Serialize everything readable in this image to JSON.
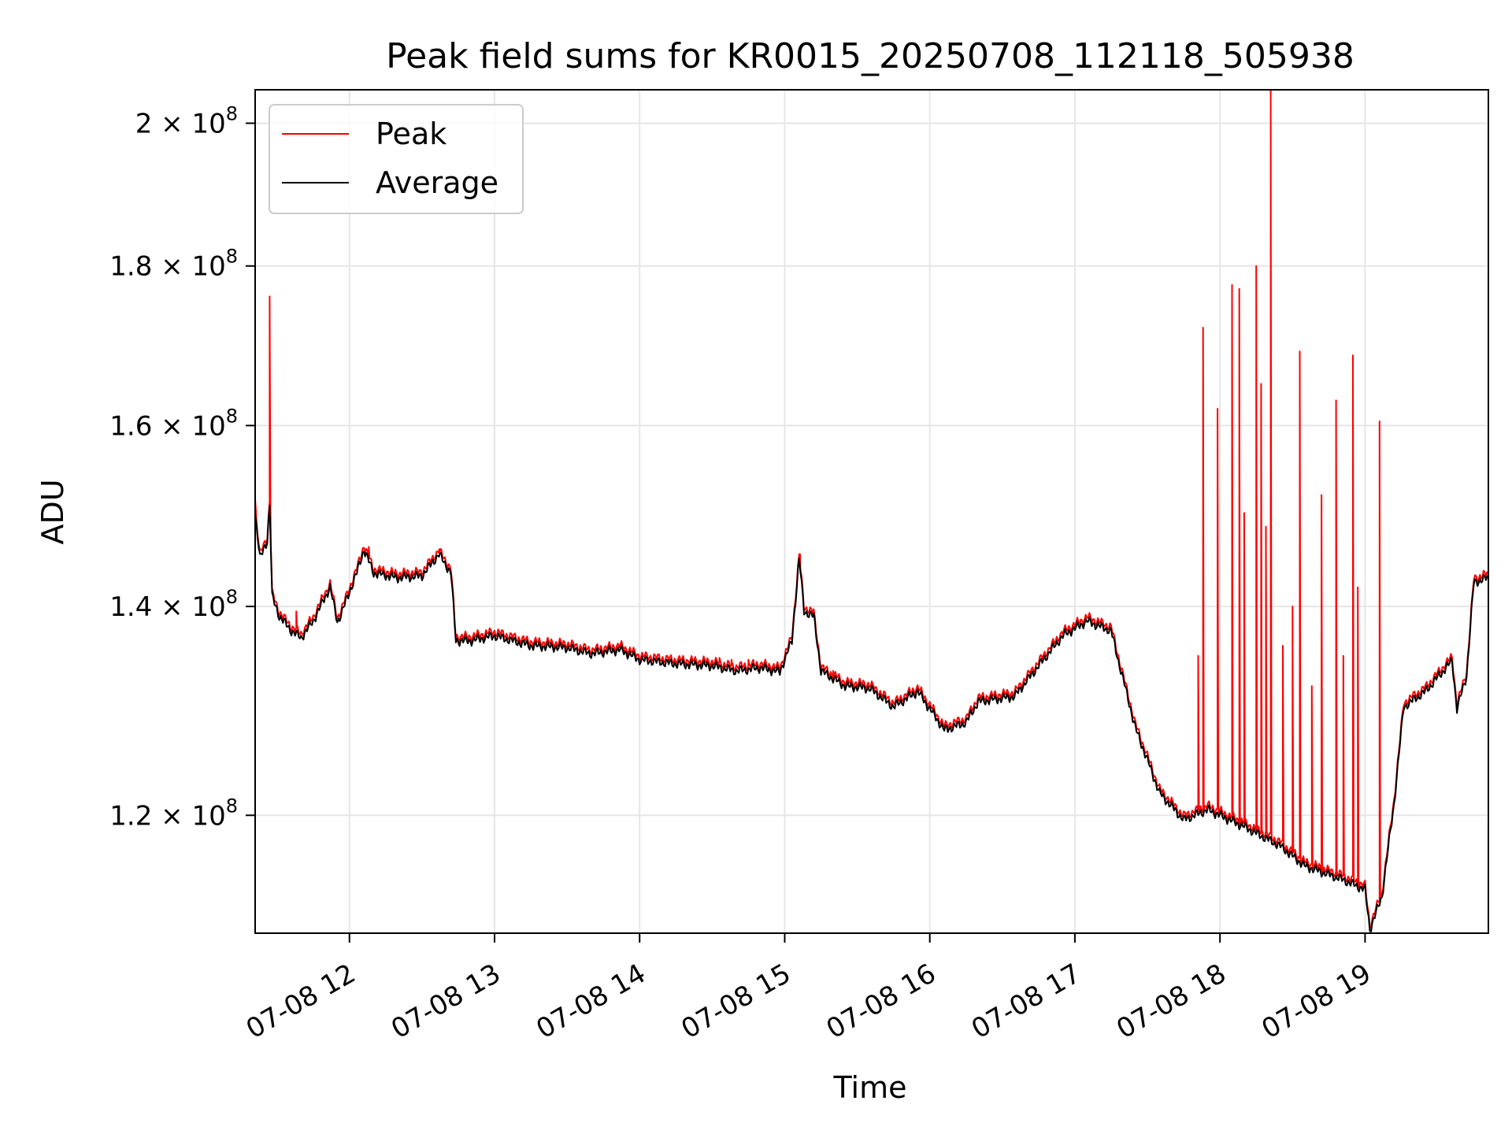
{
  "chart_data": {
    "type": "line",
    "title": "Peak field sums for KR0015_20250708_112118_505938",
    "xlabel": "Time",
    "ylabel": "ADU",
    "y_scale": "log",
    "ylim": [
      110000000,
      205000000
    ],
    "xlim": [
      "07-08 11:21",
      "07-08 19:51"
    ],
    "grid": true,
    "legend_position": "upper left",
    "x_ticks": [
      "07-08 12",
      "07-08 13",
      "07-08 14",
      "07-08 15",
      "07-08 16",
      "07-08 17",
      "07-08 18",
      "07-08 19"
    ],
    "y_ticks": [
      {
        "value": 120000000,
        "mantissa": "1.2",
        "exponent": "8"
      },
      {
        "value": 140000000,
        "mantissa": "1.4",
        "exponent": "8"
      },
      {
        "value": 160000000,
        "mantissa": "1.6",
        "exponent": "8"
      },
      {
        "value": 180000000,
        "mantissa": "1.8",
        "exponent": "8"
      },
      {
        "value": 200000000,
        "mantissa": "2",
        "exponent": "8"
      }
    ],
    "series": [
      {
        "name": "Average",
        "color": "#000000",
        "points": [
          [
            "07-08 11:21",
            150000000
          ],
          [
            "07-08 11:23",
            145000000
          ],
          [
            "07-08 11:26",
            147000000
          ],
          [
            "07-08 11:27",
            151000000
          ],
          [
            "07-08 11:28",
            141000000
          ],
          [
            "07-08 11:31",
            139000000
          ],
          [
            "07-08 11:36",
            137500000
          ],
          [
            "07-08 11:40",
            136800000
          ],
          [
            "07-08 11:45",
            138500000
          ],
          [
            "07-08 11:52",
            142000000
          ],
          [
            "07-08 11:55",
            138400000
          ],
          [
            "07-08 11:57",
            139500000
          ],
          [
            "07-08 12:03",
            143500000
          ],
          [
            "07-08 12:06",
            146000000
          ],
          [
            "07-08 12:10",
            143500000
          ],
          [
            "07-08 12:20",
            143000000
          ],
          [
            "07-08 12:30",
            143200000
          ],
          [
            "07-08 12:37",
            145500000
          ],
          [
            "07-08 12:42",
            143500000
          ],
          [
            "07-08 12:44",
            136500000
          ],
          [
            "07-08 12:50",
            136500000
          ],
          [
            "07-08 13:00",
            137000000
          ],
          [
            "07-08 13:15",
            136000000
          ],
          [
            "07-08 13:30",
            135800000
          ],
          [
            "07-08 13:40",
            135200000
          ],
          [
            "07-08 13:52",
            135600000
          ],
          [
            "07-08 14:00",
            134600000
          ],
          [
            "07-08 14:15",
            134200000
          ],
          [
            "07-08 14:30",
            134000000
          ],
          [
            "07-08 14:40",
            133500000
          ],
          [
            "07-08 14:50",
            133800000
          ],
          [
            "07-08 14:58",
            133400000
          ],
          [
            "07-08 15:03",
            136500000
          ],
          [
            "07-08 15:06",
            145000000
          ],
          [
            "07-08 15:08",
            139500000
          ],
          [
            "07-08 15:12",
            139000000
          ],
          [
            "07-08 15:15",
            133500000
          ],
          [
            "07-08 15:25",
            132000000
          ],
          [
            "07-08 15:35",
            131800000
          ],
          [
            "07-08 15:45",
            130000000
          ],
          [
            "07-08 15:55",
            131500000
          ],
          [
            "07-08 16:06",
            127800000
          ],
          [
            "07-08 16:15",
            128500000
          ],
          [
            "07-08 16:20",
            130500000
          ],
          [
            "07-08 16:35",
            131000000
          ],
          [
            "07-08 16:45",
            134000000
          ],
          [
            "07-08 16:55",
            137000000
          ],
          [
            "07-08 17:05",
            138500000
          ],
          [
            "07-08 17:15",
            137500000
          ],
          [
            "07-08 17:18",
            134500000
          ],
          [
            "07-08 17:25",
            128000000
          ],
          [
            "07-08 17:35",
            122000000
          ],
          [
            "07-08 17:45",
            119600000
          ],
          [
            "07-08 17:55",
            120500000
          ],
          [
            "07-08 18:00",
            120000000
          ],
          [
            "07-08 18:10",
            119000000
          ],
          [
            "07-08 18:25",
            117300000
          ],
          [
            "07-08 18:35",
            115600000
          ],
          [
            "07-08 18:50",
            114500000
          ],
          [
            "07-08 19:00",
            113600000
          ],
          [
            "07-08 19:02",
            110300000
          ],
          [
            "07-08 19:07",
            113000000
          ],
          [
            "07-08 19:12",
            121000000
          ],
          [
            "07-08 19:16",
            130000000
          ],
          [
            "07-08 19:25",
            131500000
          ],
          [
            "07-08 19:36",
            134500000
          ],
          [
            "07-08 19:38",
            129800000
          ],
          [
            "07-08 19:42",
            133000000
          ],
          [
            "07-08 19:45",
            142500000
          ],
          [
            "07-08 19:51",
            143000000
          ]
        ]
      },
      {
        "name": "Peak",
        "color": "#ff0000",
        "spikes": [
          [
            "07-08 11:21",
            151500000
          ],
          [
            "07-08 11:27",
            176000000
          ],
          [
            "07-08 11:38",
            139500000
          ],
          [
            "07-08 12:08",
            146300000
          ],
          [
            "07-08 12:37",
            146000000
          ],
          [
            "07-08 14:33",
            134800000
          ],
          [
            "07-08 14:38",
            134600000
          ],
          [
            "07-08 14:45",
            134600000
          ],
          [
            "07-08 15:06",
            145200000
          ],
          [
            "07-08 15:20",
            133500000
          ],
          [
            "07-08 17:51",
            135000000
          ],
          [
            "07-08 17:53",
            172000000
          ],
          [
            "07-08 17:59",
            162000000
          ],
          [
            "07-08 18:05",
            177500000
          ],
          [
            "07-08 18:08",
            177000000
          ],
          [
            "07-08 18:10",
            150000000
          ],
          [
            "07-08 18:15",
            180000000
          ],
          [
            "07-08 18:17",
            165000000
          ],
          [
            "07-08 18:19",
            148500000
          ],
          [
            "07-08 18:21",
            205000000
          ],
          [
            "07-08 18:26",
            136000000
          ],
          [
            "07-08 18:30",
            140000000
          ],
          [
            "07-08 18:33",
            169000000
          ],
          [
            "07-08 18:38",
            132000000
          ],
          [
            "07-08 18:42",
            152000000
          ],
          [
            "07-08 18:48",
            163000000
          ],
          [
            "07-08 18:51",
            135000000
          ],
          [
            "07-08 18:55",
            168500000
          ],
          [
            "07-08 18:57",
            142000000
          ],
          [
            "07-08 19:06",
            160500000
          ]
        ]
      }
    ]
  }
}
